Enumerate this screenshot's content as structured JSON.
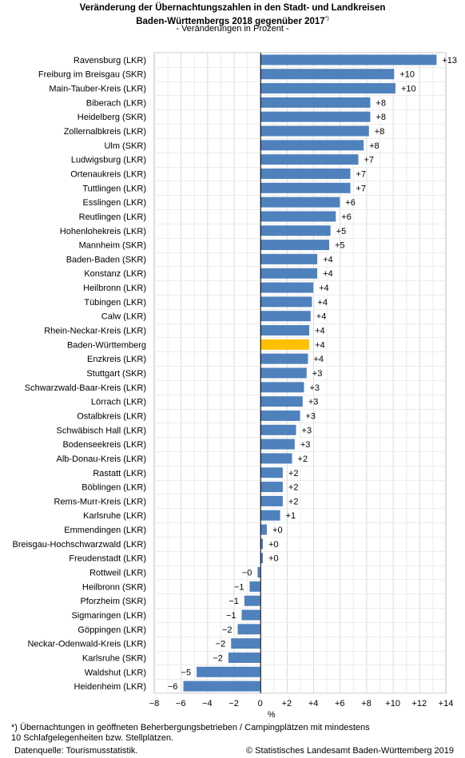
{
  "title_line1": "Veränderung der Übernachtungszahlen in den Stadt- und Landkreisen",
  "title_line2": "Baden-Württembergs 2018 gegenüber 2017",
  "title_footnote_mark": "*)",
  "subtitle": "- Veränderungen in Prozent -",
  "footnote_line1": "*) Übernachtungen in geöffneten Beherbergungsbetrieben / Campingplätzen mit mindestens",
  "footnote_line2": "10 Schlafgelegenheiten bzw. Stellplätzen.",
  "source": "Datenquelle: Tourismusstatistik.",
  "copyright": "© Statistisches Landesamt Baden-Württemberg 2019",
  "chart_data": {
    "type": "bar",
    "orientation": "horizontal",
    "xlabel": "%",
    "xlim": [
      -8,
      14
    ],
    "xticks": [
      -8,
      -6,
      -4,
      -2,
      0,
      2,
      4,
      6,
      8,
      10,
      12,
      14
    ],
    "xtick_labels": [
      "−8",
      "−6",
      "−4",
      "−2",
      "0",
      "+2",
      "+4",
      "+6",
      "+8",
      "+10",
      "+12",
      "+14"
    ],
    "grid": true,
    "colors": {
      "bar": "#4f81bd",
      "highlight": "#ffc000"
    },
    "highlight_category": "Baden-Württemberg",
    "categories": [
      "Ravensburg (LKR)",
      "Freiburg im Breisgau (SKR)",
      "Main-Tauber-Kreis (LKR)",
      "Biberach (LKR)",
      "Heidelberg (SKR)",
      "Zollernalbkreis (LKR)",
      "Ulm (SKR)",
      "Ludwigsburg (LKR)",
      "Ortenaukreis (LKR)",
      "Tuttlingen (LKR)",
      "Esslingen (LKR)",
      "Reutlingen (LKR)",
      "Hohenlohekreis (LKR)",
      "Mannheim (SKR)",
      "Baden-Baden (SKR)",
      "Konstanz (LKR)",
      "Heilbronn (LKR)",
      "Tübingen (LKR)",
      "Calw (LKR)",
      "Rhein-Neckar-Kreis (LKR)",
      "Baden-Württemberg",
      "Enzkreis (LKR)",
      "Stuttgart (SKR)",
      "Schwarzwald-Baar-Kreis (LKR)",
      "Lörrach (LKR)",
      "Ostalbkreis (LKR)",
      "Schwäbisch Hall (LKR)",
      "Bodenseekreis (LKR)",
      "Alb-Donau-Kreis (LKR)",
      "Rastatt (LKR)",
      "Böblingen (LKR)",
      "Rems-Murr-Kreis (LKR)",
      "Karlsruhe (LKR)",
      "Emmendingen (LKR)",
      "Breisgau-Hochschwarzwald (LKR)",
      "Freudenstadt (LKR)",
      "Rottweil (LKR)",
      "Heilbronn (SKR)",
      "Pforzheim (SKR)",
      "Sigmaringen (LKR)",
      "Göppingen (LKR)",
      "Neckar-Odenwald-Kreis (LKR)",
      "Karlsruhe (SKR)",
      "Waldshut (LKR)",
      "Heidenheim (LKR)"
    ],
    "values": [
      13.3,
      10.1,
      10.2,
      8.3,
      8.3,
      8.2,
      7.8,
      7.4,
      6.8,
      6.8,
      6.0,
      5.7,
      5.3,
      5.2,
      4.3,
      4.3,
      4.0,
      3.9,
      3.8,
      3.7,
      3.7,
      3.6,
      3.5,
      3.3,
      3.2,
      3.0,
      2.7,
      2.6,
      2.4,
      1.7,
      1.7,
      1.7,
      1.5,
      0.5,
      0.2,
      0.2,
      -0.2,
      -0.8,
      -1.2,
      -1.4,
      -1.7,
      -2.2,
      -2.4,
      -4.8,
      -5.8
    ],
    "value_labels": [
      "+13",
      "+10",
      "+10",
      "+8",
      "+8",
      "+8",
      "+8",
      "+7",
      "+7",
      "+7",
      "+6",
      "+6",
      "+5",
      "+5",
      "+4",
      "+4",
      "+4",
      "+4",
      "+4",
      "+4",
      "+4",
      "+4",
      "+3",
      "+3",
      "+3",
      "+3",
      "+3",
      "+3",
      "+2",
      "+2",
      "+2",
      "+2",
      "+1",
      "+0",
      "+0",
      "+0",
      "−0",
      "−1",
      "−1",
      "−1",
      "−2",
      "−2",
      "−2",
      "−5",
      "−6"
    ]
  }
}
